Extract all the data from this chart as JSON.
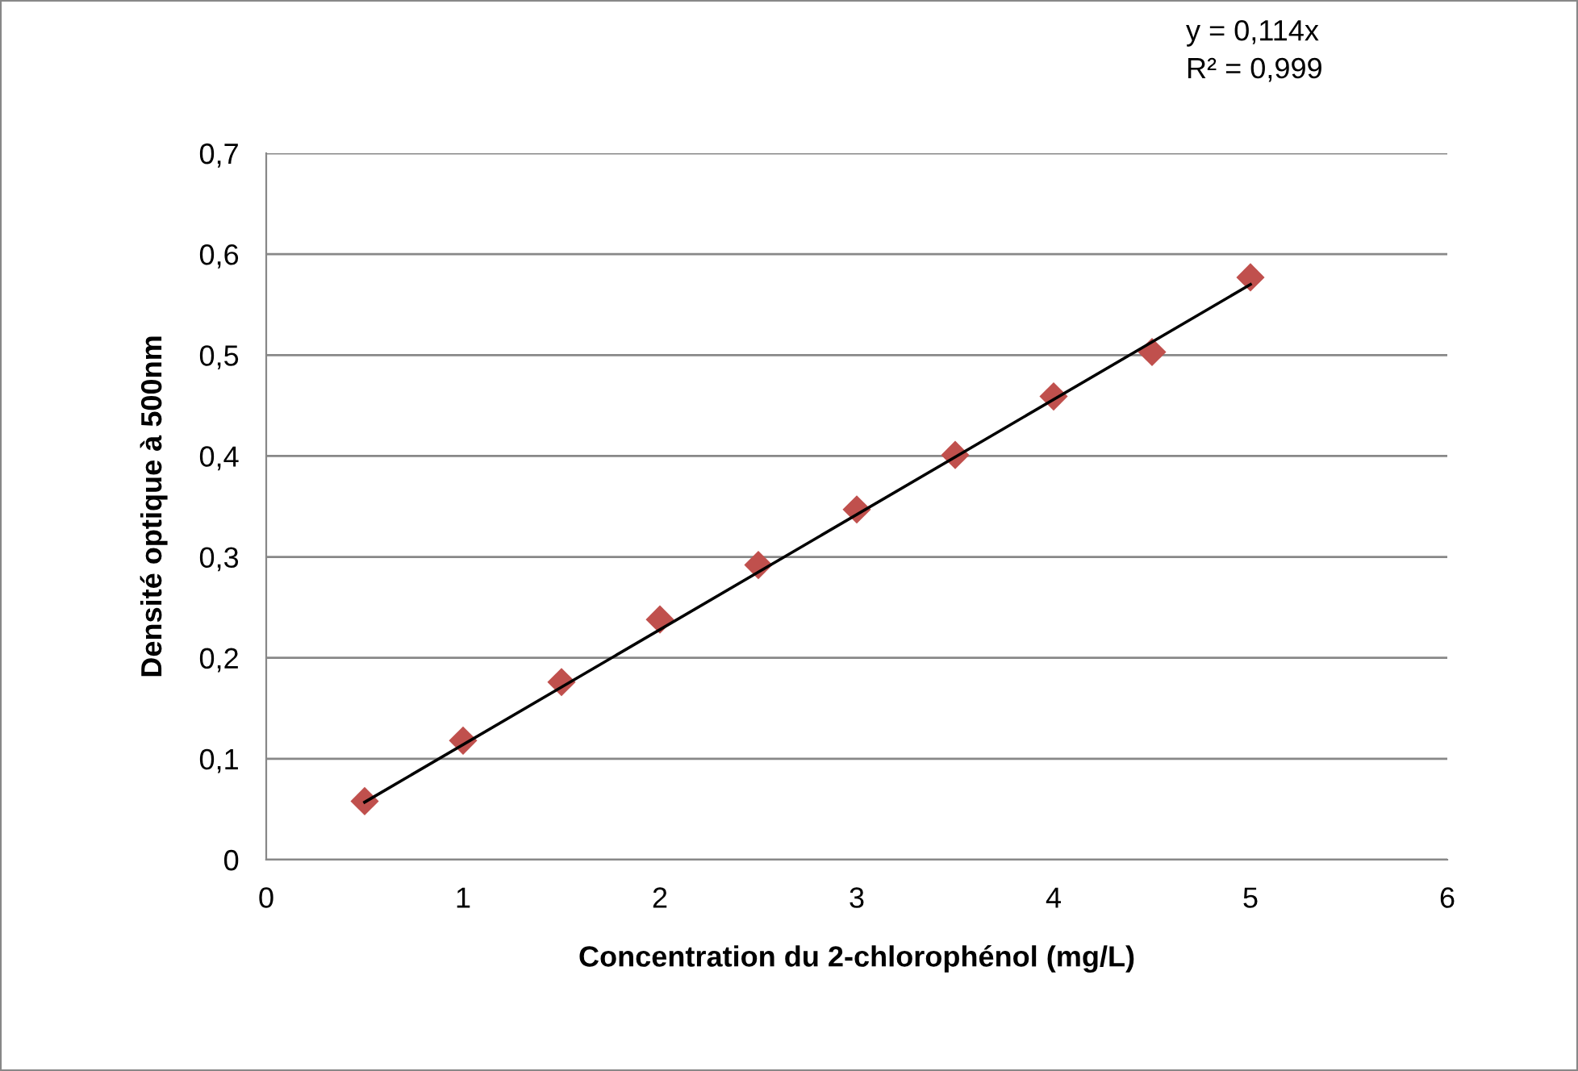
{
  "chart_data": {
    "type": "scatter",
    "xlabel": "Concentration du 2-chlorophénol (mg/L)",
    "ylabel": "Densité optique à 500nm",
    "annotations": [
      "y = 0,114x\nR² = 0,999"
    ],
    "series": [
      {
        "color": "#c0504d",
        "marker": "diamond",
        "x": [
          0.5,
          1,
          1.5,
          2,
          2.5,
          3,
          3.5,
          4,
          4.5,
          5
        ],
        "values": [
          0.058,
          0.118,
          0.176,
          0.238,
          0.292,
          0.347,
          0.401,
          0.459,
          0.503,
          0.577
        ]
      },
      {
        "type": "line",
        "color": "#000000",
        "marker": "none",
        "x": [
          0.5,
          5
        ],
        "values": [
          0.057,
          0.57
        ]
      }
    ],
    "xlim": [
      0,
      6
    ],
    "xticks": [
      0,
      1,
      2,
      3,
      4,
      5,
      6
    ],
    "ylim": [
      0,
      0.7
    ],
    "yticks": [
      0,
      {
        "value": 0.1,
        "label": "0,1"
      },
      {
        "value": 0.2,
        "label": "0,2"
      },
      {
        "value": 0.3,
        "label": "0,3"
      },
      {
        "value": 0.4,
        "label": "0,4"
      },
      {
        "value": 0.5,
        "label": "0,5"
      },
      {
        "value": 0.6,
        "label": "0,6"
      },
      {
        "value": 0.7,
        "label": "0,7"
      }
    ],
    "grid": "y",
    "legend": false
  }
}
